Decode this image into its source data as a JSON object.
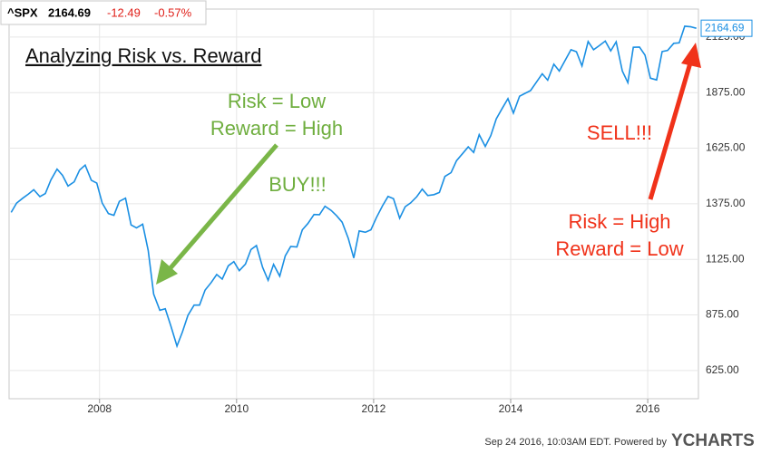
{
  "chart_data": {
    "type": "line",
    "title": "Analyzing Risk vs. Reward",
    "header": {
      "price": 2164.69,
      "change": -12.49,
      "change_pct": "-0.57%"
    },
    "annotations": {
      "buy_risk": "Risk = Low",
      "buy_reward": "Reward = High",
      "buy": "BUY!!!",
      "sell": "SELL!!!",
      "sell_risk": "Risk = High",
      "sell_reward": "Reward = Low"
    },
    "footer": {
      "timestamp": "Sep 24 2016, 10:03AM EDT.  Powered by",
      "brand": "YCHARTS"
    },
    "x": [
      2006.71,
      2006.79,
      2006.88,
      2006.96,
      2007.04,
      2007.13,
      2007.21,
      2007.29,
      2007.38,
      2007.46,
      2007.54,
      2007.63,
      2007.71,
      2007.79,
      2007.88,
      2007.96,
      2008.04,
      2008.13,
      2008.21,
      2008.29,
      2008.38,
      2008.46,
      2008.54,
      2008.63,
      2008.71,
      2008.79,
      2008.88,
      2008.96,
      2009.04,
      2009.13,
      2009.21,
      2009.29,
      2009.38,
      2009.46,
      2009.54,
      2009.63,
      2009.71,
      2009.79,
      2009.88,
      2009.96,
      2010.04,
      2010.13,
      2010.21,
      2010.29,
      2010.38,
      2010.46,
      2010.54,
      2010.63,
      2010.71,
      2010.79,
      2010.88,
      2010.96,
      2011.04,
      2011.13,
      2011.21,
      2011.29,
      2011.38,
      2011.46,
      2011.54,
      2011.63,
      2011.71,
      2011.79,
      2011.88,
      2011.96,
      2012.04,
      2012.13,
      2012.21,
      2012.29,
      2012.38,
      2012.46,
      2012.54,
      2012.63,
      2012.71,
      2012.79,
      2012.88,
      2012.96,
      2013.04,
      2013.13,
      2013.21,
      2013.29,
      2013.38,
      2013.46,
      2013.54,
      2013.63,
      2013.71,
      2013.79,
      2013.88,
      2013.96,
      2014.04,
      2014.13,
      2014.21,
      2014.29,
      2014.38,
      2014.46,
      2014.54,
      2014.63,
      2014.71,
      2014.79,
      2014.88,
      2014.96,
      2015.04,
      2015.13,
      2015.21,
      2015.29,
      2015.38,
      2015.46,
      2015.54,
      2015.63,
      2015.71,
      2015.79,
      2015.88,
      2015.96,
      2016.04,
      2016.13,
      2016.21,
      2016.29,
      2016.38,
      2016.46,
      2016.54,
      2016.63,
      2016.71
    ],
    "series": [
      {
        "name": "^SPX",
        "color": "#1a8fe3",
        "values": [
          1336,
          1378,
          1400,
          1418,
          1438,
          1407,
          1421,
          1482,
          1531,
          1503,
          1455,
          1474,
          1527,
          1549,
          1481,
          1468,
          1378,
          1331,
          1323,
          1386,
          1400,
          1280,
          1267,
          1283,
          1165,
          969,
          896,
          903,
          826,
          735,
          798,
          873,
          919,
          919,
          987,
          1021,
          1057,
          1036,
          1096,
          1115,
          1074,
          1104,
          1169,
          1187,
          1089,
          1031,
          1102,
          1049,
          1141,
          1183,
          1181,
          1258,
          1286,
          1327,
          1326,
          1364,
          1345,
          1321,
          1292,
          1219,
          1131,
          1253,
          1247,
          1258,
          1312,
          1366,
          1408,
          1398,
          1310,
          1362,
          1379,
          1407,
          1441,
          1412,
          1416,
          1426,
          1498,
          1515,
          1569,
          1598,
          1631,
          1606,
          1686,
          1633,
          1682,
          1757,
          1806,
          1848,
          1783,
          1859,
          1872,
          1884,
          1924,
          1960,
          1931,
          2003,
          1972,
          2018,
          2068,
          2059,
          1995,
          2105,
          2068,
          2086,
          2107,
          2063,
          2104,
          1972,
          1920,
          2079,
          2080,
          2044,
          1940,
          1932,
          2060,
          2065,
          2097,
          2099,
          2174,
          2171,
          2164.69
        ]
      }
    ],
    "xlim": [
      2006.68,
      2016.74
    ],
    "ylim": [
      498,
      2251
    ],
    "xticks": [
      2008,
      2010,
      2012,
      2014,
      2016
    ],
    "yticks": [
      {
        "value": 625,
        "label": "625.00"
      },
      {
        "value": 875,
        "label": "875.00"
      },
      {
        "value": 1125,
        "label": "1125.00"
      },
      {
        "value": 1375,
        "label": "1375.00"
      },
      {
        "value": 1625,
        "label": "1625.00"
      },
      {
        "value": 1875,
        "label": "1875.00"
      },
      {
        "value": 2125,
        "label": "2125.00"
      }
    ],
    "grid": true
  }
}
